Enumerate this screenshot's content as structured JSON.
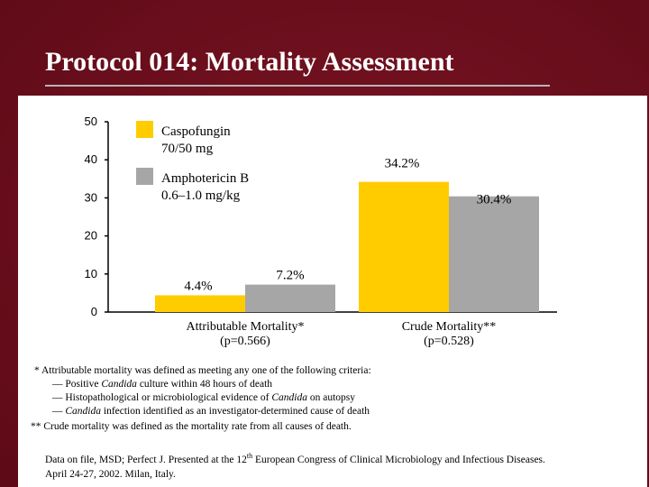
{
  "slide": {
    "title": "Protocol 014: Mortality Assessment",
    "background_color": "#6e0f1c"
  },
  "chart_data": {
    "type": "bar",
    "ylim": [
      0,
      50
    ],
    "yticks": [
      0,
      10,
      20,
      30,
      40,
      50
    ],
    "groups": [
      {
        "label_line1": "Attributable Mortality*",
        "label_line2": "(p=0.566)"
      },
      {
        "label_line1": "Crude Mortality**",
        "label_line2": "(p=0.528)"
      }
    ],
    "series": [
      {
        "name_line1": "Caspofungin",
        "name_line2": "70/50 mg",
        "color": "#ffcc00",
        "values": [
          4.4,
          34.2
        ],
        "labels": [
          "4.4%",
          "34.2%"
        ]
      },
      {
        "name_line1": "Amphotericin B",
        "name_line2": "0.6–1.0 mg/kg",
        "color": "#a6a6a6",
        "values": [
          7.2,
          30.4
        ],
        "labels": [
          "7.2%",
          "30.4%"
        ]
      }
    ],
    "legend_position": "top-left"
  },
  "footnotes": {
    "attributable_def": "* Attributable mortality was defined as meeting any one of the following criteria:",
    "criteria": [
      {
        "pre": "— Positive ",
        "em": "Candida",
        "post": " culture within 48 hours of death"
      },
      {
        "pre": "— Histopathological or microbiological evidence of ",
        "em": "Candida",
        "post": " on autopsy"
      },
      {
        "pre": "— ",
        "em": "Candida",
        "post": " infection identified as an investigator-determined cause of death"
      }
    ],
    "crude_def": "** Crude mortality was defined as the mortality rate from all causes of death."
  },
  "citation": {
    "part1": "Data on file, MSD; Perfect J. Presented at the 12",
    "sup": "th",
    "part2": " European Congress of Clinical Microbiology and Infectious Diseases.",
    "line2": "April 24-27, 2002. Milan, Italy."
  }
}
